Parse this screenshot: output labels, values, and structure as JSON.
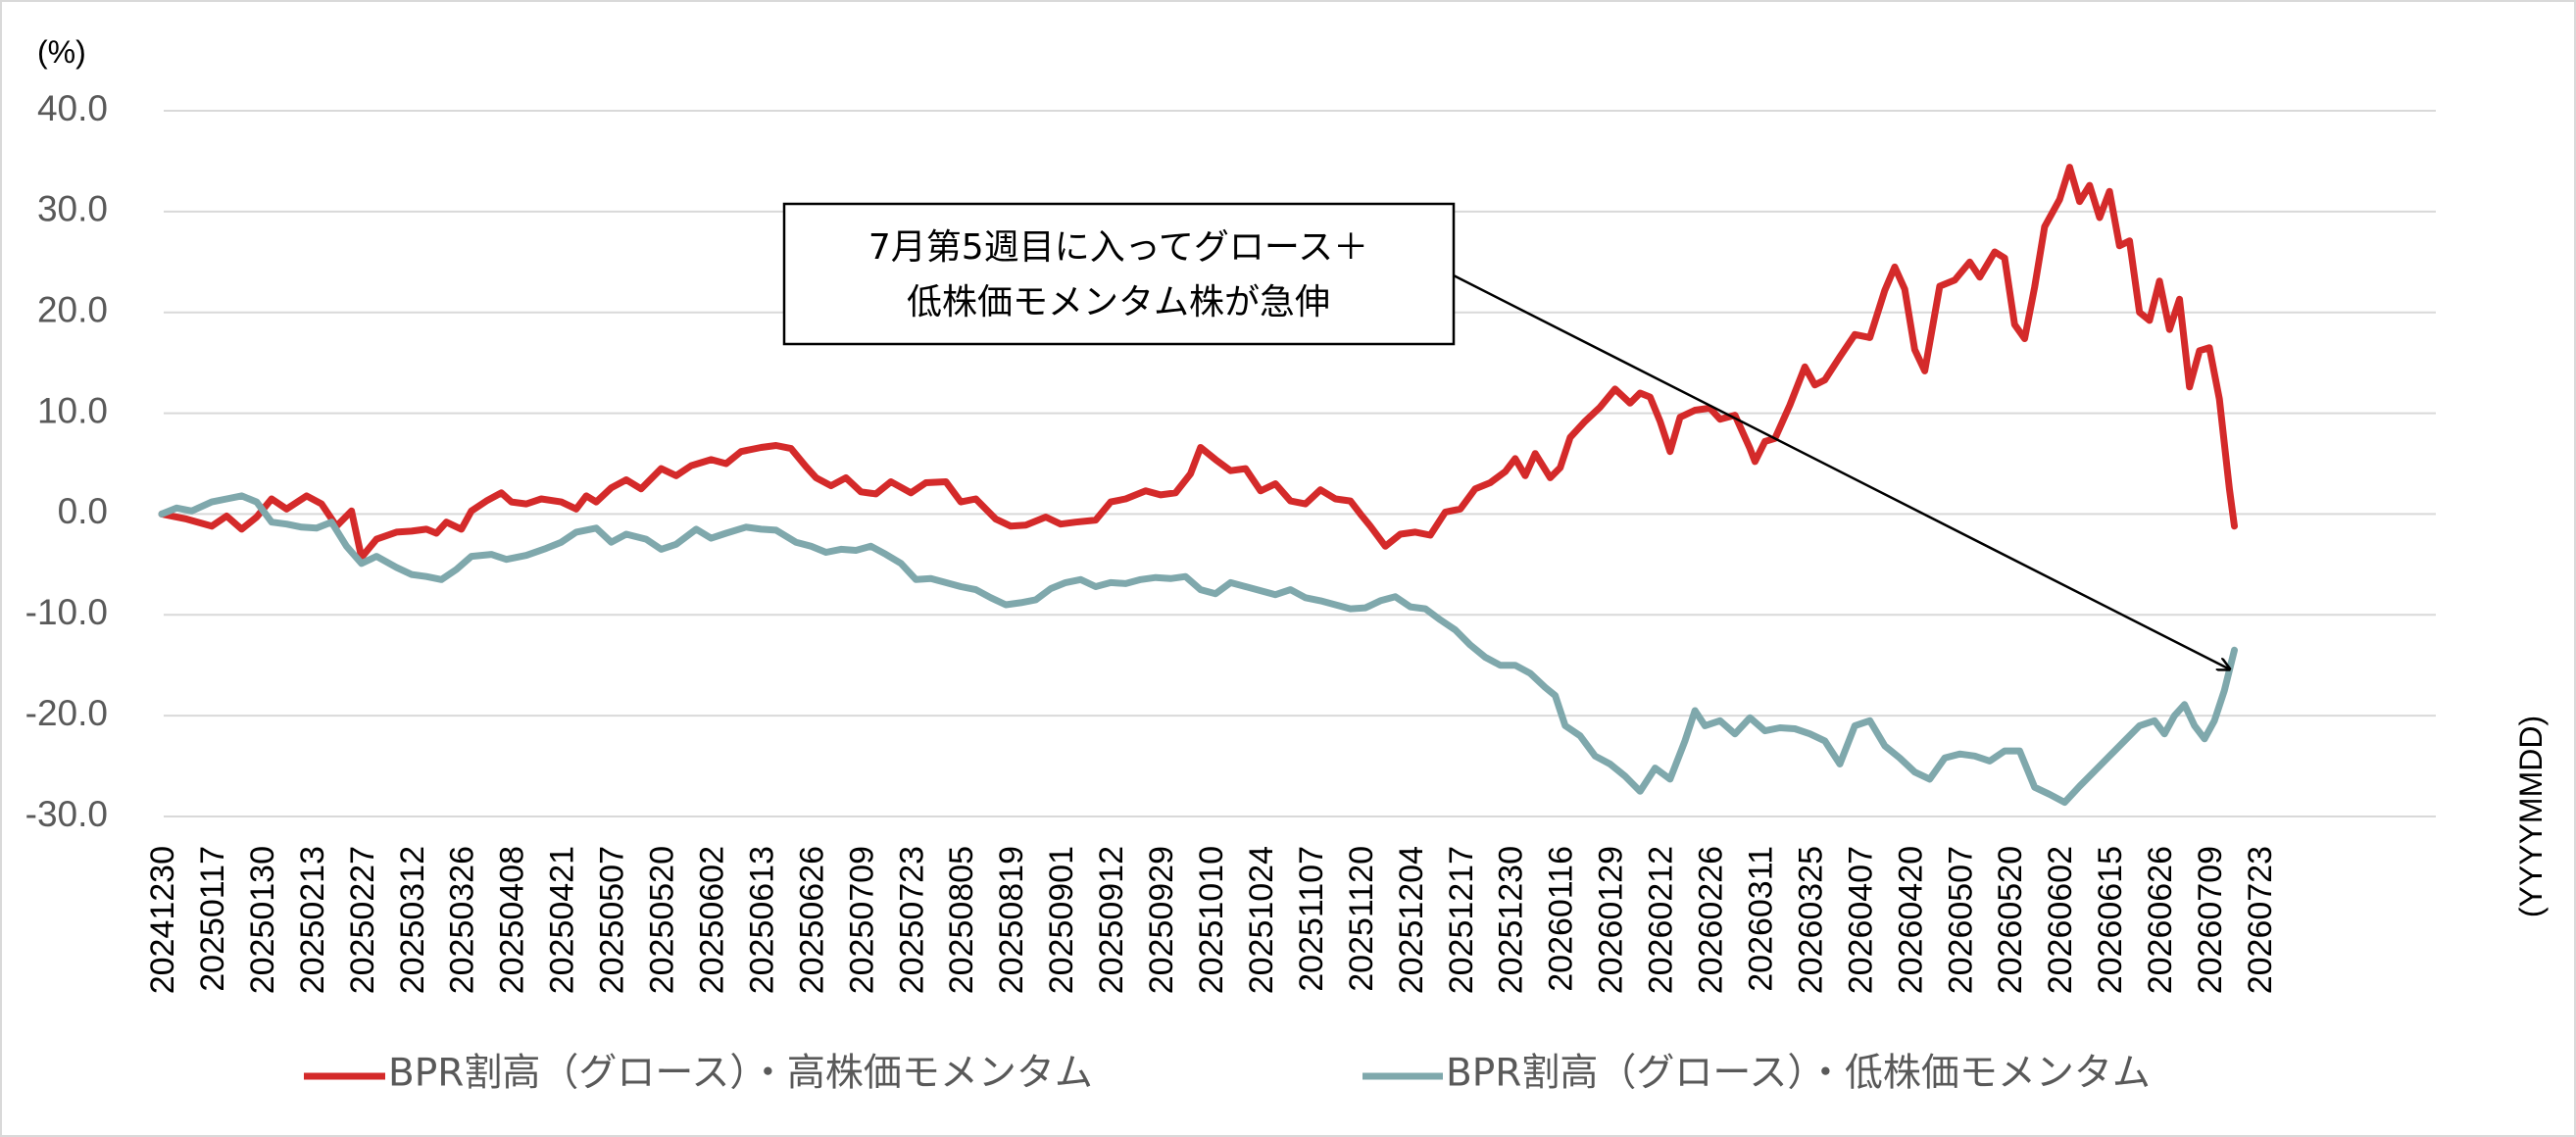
{
  "chart_data": {
    "type": "line",
    "ylabel": "(%)",
    "xlabel": "(YYYYMMDD)",
    "ylim": [
      -30,
      40
    ],
    "yticks": [
      "40.0",
      "30.0",
      "20.0",
      "10.0",
      "0.0",
      "-10.0",
      "-20.0",
      "-30.0"
    ],
    "ytick_values": [
      40,
      30,
      20,
      10,
      0,
      -10,
      -20,
      -30
    ],
    "grid": true,
    "legend_position": "bottom",
    "categories": [
      "20241230",
      "20250117",
      "20250130",
      "20250213",
      "20250227",
      "20250312",
      "20250326",
      "20250408",
      "20250421",
      "20250507",
      "20250520",
      "20250602",
      "20250613",
      "20250626",
      "20250709",
      "20250723",
      "20250805",
      "20250819",
      "20250901",
      "20250912",
      "20250929",
      "20251010",
      "20251024",
      "20251107",
      "20251120",
      "20251204",
      "20251217",
      "20251230",
      "20260116",
      "20260129",
      "20260212",
      "20260226",
      "20260311",
      "20260325",
      "20260407",
      "20260420",
      "20260507",
      "20260520",
      "20260602",
      "20260615",
      "20260626",
      "20260709",
      "20260723"
    ],
    "series": [
      {
        "name": "BPR割高（グロース）・高株価モメンタム",
        "color": "#d42a2a",
        "points": [
          [
            0,
            0
          ],
          [
            0.5,
            -0.5
          ],
          [
            1,
            -1.2
          ],
          [
            1.3,
            -0.2
          ],
          [
            1.6,
            -1.5
          ],
          [
            1.9,
            -0.3
          ],
          [
            2.2,
            1.5
          ],
          [
            2.5,
            0.5
          ],
          [
            2.9,
            1.8
          ],
          [
            3.2,
            1
          ],
          [
            3.5,
            -1.2
          ],
          [
            3.8,
            0.3
          ],
          [
            4.0,
            -4.3
          ],
          [
            4.3,
            -2.5
          ],
          [
            4.7,
            -1.8
          ],
          [
            5.0,
            -1.7
          ],
          [
            5.3,
            -1.5
          ],
          [
            5.5,
            -1.9
          ],
          [
            5.7,
            -0.8
          ],
          [
            6.0,
            -1.5
          ],
          [
            6.2,
            0.3
          ],
          [
            6.5,
            1.3
          ],
          [
            6.8,
            2.1
          ],
          [
            7.0,
            1.2
          ],
          [
            7.3,
            1
          ],
          [
            7.6,
            1.5
          ],
          [
            8.0,
            1.2
          ],
          [
            8.3,
            0.5
          ],
          [
            8.5,
            1.8
          ],
          [
            8.7,
            1.2
          ],
          [
            9.0,
            2.6
          ],
          [
            9.3,
            3.4
          ],
          [
            9.6,
            2.5
          ],
          [
            10.0,
            4.5
          ],
          [
            10.3,
            3.8
          ],
          [
            10.6,
            4.8
          ],
          [
            11.0,
            5.4
          ],
          [
            11.3,
            5
          ],
          [
            11.6,
            6.2
          ],
          [
            12.0,
            6.6
          ],
          [
            12.3,
            6.8
          ],
          [
            12.6,
            6.5
          ],
          [
            12.9,
            4.7
          ],
          [
            13.1,
            3.6
          ],
          [
            13.4,
            2.8
          ],
          [
            13.7,
            3.6
          ],
          [
            14.0,
            2.2
          ],
          [
            14.3,
            2
          ],
          [
            14.6,
            3.2
          ],
          [
            15.0,
            2.1
          ],
          [
            15.3,
            3.1
          ],
          [
            15.7,
            3.2
          ],
          [
            16.0,
            1.2
          ],
          [
            16.3,
            1.5
          ],
          [
            16.7,
            -0.5
          ],
          [
            17.0,
            -1.2
          ],
          [
            17.3,
            -1.1
          ],
          [
            17.7,
            -0.3
          ],
          [
            18.0,
            -1
          ],
          [
            18.3,
            -0.8
          ],
          [
            18.7,
            -0.6
          ],
          [
            19.0,
            1.2
          ],
          [
            19.3,
            1.5
          ],
          [
            19.7,
            2.3
          ],
          [
            20.0,
            1.9
          ],
          [
            20.3,
            2.1
          ],
          [
            20.6,
            4
          ],
          [
            20.8,
            6.6
          ],
          [
            21.1,
            5.4
          ],
          [
            21.4,
            4.3
          ],
          [
            21.7,
            4.5
          ],
          [
            22.0,
            2.3
          ],
          [
            22.3,
            3
          ],
          [
            22.6,
            1.3
          ],
          [
            22.9,
            1
          ],
          [
            23.2,
            2.4
          ],
          [
            23.5,
            1.5
          ],
          [
            23.8,
            1.3
          ],
          [
            24.0,
            0
          ],
          [
            24.2,
            -1.2
          ],
          [
            24.5,
            -3.2
          ],
          [
            24.8,
            -2
          ],
          [
            25.1,
            -1.8
          ],
          [
            25.4,
            -2.1
          ],
          [
            25.7,
            0.2
          ],
          [
            26.0,
            0.5
          ],
          [
            26.3,
            2.5
          ],
          [
            26.6,
            3.1
          ],
          [
            26.9,
            4.2
          ],
          [
            27.1,
            5.5
          ],
          [
            27.3,
            3.8
          ],
          [
            27.5,
            6
          ],
          [
            27.8,
            3.6
          ],
          [
            28.0,
            4.6
          ],
          [
            28.2,
            7.6
          ],
          [
            28.5,
            9.2
          ],
          [
            28.8,
            10.6
          ],
          [
            29.1,
            12.4
          ],
          [
            29.4,
            11
          ],
          [
            29.6,
            12
          ],
          [
            29.8,
            11.6
          ],
          [
            30.0,
            9.2
          ],
          [
            30.2,
            6.2
          ],
          [
            30.4,
            9.6
          ],
          [
            30.7,
            10.3
          ],
          [
            31.0,
            10.5
          ],
          [
            31.2,
            9.4
          ],
          [
            31.5,
            9.8
          ],
          [
            31.8,
            6.5
          ],
          [
            31.9,
            5.2
          ],
          [
            32.1,
            7.2
          ],
          [
            32.3,
            7.5
          ],
          [
            32.6,
            10.8
          ],
          [
            32.9,
            14.6
          ],
          [
            33.1,
            12.8
          ],
          [
            33.3,
            13.3
          ],
          [
            33.6,
            15.6
          ],
          [
            33.9,
            17.8
          ],
          [
            34.2,
            17.5
          ],
          [
            34.5,
            22.2
          ],
          [
            34.7,
            24.5
          ],
          [
            34.9,
            22.3
          ],
          [
            35.1,
            16.3
          ],
          [
            35.3,
            14.2
          ],
          [
            35.6,
            22.6
          ],
          [
            35.9,
            23.2
          ],
          [
            36.2,
            25
          ],
          [
            36.4,
            23.5
          ],
          [
            36.7,
            26
          ],
          [
            36.9,
            25.4
          ],
          [
            37.1,
            18.8
          ],
          [
            37.3,
            17.4
          ],
          [
            37.5,
            22.5
          ],
          [
            37.7,
            28.5
          ],
          [
            38.0,
            31.2
          ],
          [
            38.2,
            34.4
          ],
          [
            38.4,
            31
          ],
          [
            38.6,
            32.6
          ],
          [
            38.8,
            29.4
          ],
          [
            39.0,
            32
          ],
          [
            39.2,
            26.6
          ],
          [
            39.4,
            27.1
          ],
          [
            39.6,
            20
          ],
          [
            39.8,
            19.2
          ],
          [
            40.0,
            23.1
          ],
          [
            40.2,
            18.3
          ],
          [
            40.4,
            21.3
          ],
          [
            40.6,
            12.6
          ],
          [
            40.8,
            16.2
          ],
          [
            41.0,
            16.5
          ],
          [
            41.2,
            11.4
          ],
          [
            41.4,
            2.5
          ],
          [
            41.5,
            -1.2
          ]
        ]
      },
      {
        "name": "BPR割高（グロース）・低株価モメンタム",
        "color": "#7fa8ac",
        "points": [
          [
            0,
            0
          ],
          [
            0.3,
            0.6
          ],
          [
            0.6,
            0.3
          ],
          [
            1,
            1.2
          ],
          [
            1.3,
            1.5
          ],
          [
            1.6,
            1.8
          ],
          [
            1.9,
            1.2
          ],
          [
            2.2,
            -0.8
          ],
          [
            2.5,
            -1
          ],
          [
            2.8,
            -1.3
          ],
          [
            3.1,
            -1.4
          ],
          [
            3.4,
            -0.8
          ],
          [
            3.7,
            -3.2
          ],
          [
            4.0,
            -4.9
          ],
          [
            4.3,
            -4.2
          ],
          [
            4.7,
            -5.3
          ],
          [
            5.0,
            -6
          ],
          [
            5.3,
            -6.2
          ],
          [
            5.6,
            -6.5
          ],
          [
            5.9,
            -5.5
          ],
          [
            6.2,
            -4.2
          ],
          [
            6.6,
            -4
          ],
          [
            6.9,
            -4.5
          ],
          [
            7.3,
            -4.1
          ],
          [
            7.7,
            -3.4
          ],
          [
            8.0,
            -2.8
          ],
          [
            8.3,
            -1.8
          ],
          [
            8.7,
            -1.4
          ],
          [
            9.0,
            -2.8
          ],
          [
            9.3,
            -2
          ],
          [
            9.7,
            -2.5
          ],
          [
            10.0,
            -3.5
          ],
          [
            10.3,
            -3
          ],
          [
            10.7,
            -1.5
          ],
          [
            11.0,
            -2.4
          ],
          [
            11.3,
            -1.9
          ],
          [
            11.7,
            -1.3
          ],
          [
            12.0,
            -1.5
          ],
          [
            12.3,
            -1.6
          ],
          [
            12.7,
            -2.8
          ],
          [
            13.0,
            -3.2
          ],
          [
            13.3,
            -3.8
          ],
          [
            13.6,
            -3.5
          ],
          [
            13.9,
            -3.6
          ],
          [
            14.2,
            -3.2
          ],
          [
            14.5,
            -4
          ],
          [
            14.8,
            -4.9
          ],
          [
            15.1,
            -6.5
          ],
          [
            15.4,
            -6.4
          ],
          [
            15.7,
            -6.8
          ],
          [
            16.0,
            -7.2
          ],
          [
            16.3,
            -7.5
          ],
          [
            16.6,
            -8.3
          ],
          [
            16.9,
            -9
          ],
          [
            17.2,
            -8.8
          ],
          [
            17.5,
            -8.5
          ],
          [
            17.8,
            -7.4
          ],
          [
            18.1,
            -6.8
          ],
          [
            18.4,
            -6.5
          ],
          [
            18.7,
            -7.2
          ],
          [
            19.0,
            -6.8
          ],
          [
            19.3,
            -6.9
          ],
          [
            19.6,
            -6.5
          ],
          [
            19.9,
            -6.3
          ],
          [
            20.2,
            -6.4
          ],
          [
            20.5,
            -6.2
          ],
          [
            20.8,
            -7.5
          ],
          [
            21.1,
            -7.9
          ],
          [
            21.4,
            -6.8
          ],
          [
            21.7,
            -7.2
          ],
          [
            22.0,
            -7.6
          ],
          [
            22.3,
            -8
          ],
          [
            22.6,
            -7.5
          ],
          [
            22.9,
            -8.3
          ],
          [
            23.2,
            -8.6
          ],
          [
            23.5,
            -9
          ],
          [
            23.8,
            -9.4
          ],
          [
            24.1,
            -9.3
          ],
          [
            24.4,
            -8.6
          ],
          [
            24.7,
            -8.2
          ],
          [
            25.0,
            -9.2
          ],
          [
            25.3,
            -9.4
          ],
          [
            25.6,
            -10.5
          ],
          [
            25.9,
            -11.5
          ],
          [
            26.2,
            -13
          ],
          [
            26.5,
            -14.2
          ],
          [
            26.8,
            -15
          ],
          [
            27.1,
            -15
          ],
          [
            27.4,
            -15.8
          ],
          [
            27.7,
            -17.2
          ],
          [
            27.9,
            -18
          ],
          [
            28.1,
            -21
          ],
          [
            28.4,
            -22
          ],
          [
            28.7,
            -24
          ],
          [
            29.0,
            -24.8
          ],
          [
            29.3,
            -26
          ],
          [
            29.6,
            -27.5
          ],
          [
            29.9,
            -25.2
          ],
          [
            30.2,
            -26.3
          ],
          [
            30.5,
            -22.5
          ],
          [
            30.7,
            -19.5
          ],
          [
            30.9,
            -21
          ],
          [
            31.2,
            -20.5
          ],
          [
            31.5,
            -21.8
          ],
          [
            31.8,
            -20.2
          ],
          [
            32.1,
            -21.5
          ],
          [
            32.4,
            -21.2
          ],
          [
            32.7,
            -21.3
          ],
          [
            33.0,
            -21.8
          ],
          [
            33.3,
            -22.5
          ],
          [
            33.6,
            -24.8
          ],
          [
            33.9,
            -21
          ],
          [
            34.2,
            -20.5
          ],
          [
            34.5,
            -23
          ],
          [
            34.8,
            -24.2
          ],
          [
            35.1,
            -25.6
          ],
          [
            35.4,
            -26.3
          ],
          [
            35.7,
            -24.2
          ],
          [
            36.0,
            -23.8
          ],
          [
            36.3,
            -24
          ],
          [
            36.6,
            -24.5
          ],
          [
            36.9,
            -23.5
          ],
          [
            37.2,
            -23.5
          ],
          [
            37.5,
            -27.1
          ],
          [
            37.8,
            -27.8
          ],
          [
            38.1,
            -28.6
          ],
          [
            38.4,
            -27
          ],
          [
            38.7,
            -25.5
          ],
          [
            39.0,
            -24
          ],
          [
            39.3,
            -22.5
          ],
          [
            39.6,
            -21
          ],
          [
            39.9,
            -20.5
          ],
          [
            40.1,
            -21.8
          ],
          [
            40.3,
            -20
          ],
          [
            40.5,
            -18.9
          ],
          [
            40.7,
            -21
          ],
          [
            40.9,
            -22.3
          ],
          [
            41.1,
            -20.5
          ],
          [
            41.3,
            -17.5
          ],
          [
            41.5,
            -13.5
          ]
        ]
      }
    ],
    "annotation": {
      "lines": [
        "7月第5週目に入ってグロース＋",
        "低株価モメンタム株が急伸"
      ]
    }
  }
}
